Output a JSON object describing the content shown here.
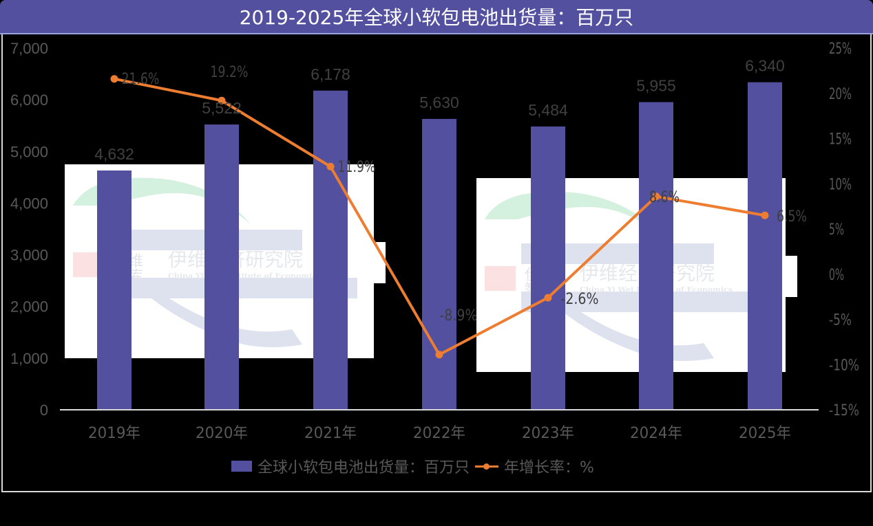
{
  "title": "2019-2025年全球小软包电池出货量：百万只",
  "legend": {
    "bar_label": "全球小软包电池出货量：百万只",
    "line_label": "年增长率：%"
  },
  "colors": {
    "bar": "#5450A0",
    "line": "#ED7D31",
    "title_bg": "#5450A0",
    "axis_text": "#595959",
    "data_label": "#404040"
  },
  "watermark": {
    "cn_short": "伊维智库",
    "cn_full": "伊维经济研究院",
    "en": "China Yi Wei Institute of Economics"
  },
  "chart_data": {
    "type": "bar+line",
    "title": "2019-2025年全球小软包电池出货量：百万只",
    "categories": [
      "2019年",
      "2020年",
      "2021年",
      "2022年",
      "2023年",
      "2024年",
      "2025年"
    ],
    "series": [
      {
        "name": "全球小软包电池出货量：百万只",
        "type": "bar",
        "axis": "left",
        "values": [
          4632,
          5522,
          6178,
          5630,
          5484,
          5955,
          6340
        ],
        "labels": [
          "4,632",
          "5,522",
          "6,178",
          "5,630",
          "5,484",
          "5,955",
          "6,340"
        ]
      },
      {
        "name": "年增长率：%",
        "type": "line",
        "axis": "right",
        "values": [
          21.6,
          19.2,
          11.9,
          -8.9,
          -2.6,
          8.6,
          6.5
        ],
        "labels": [
          "21.6%",
          "19.2%",
          "11.9%",
          "-8.9%",
          "-2.6%",
          "8.6%",
          "6.5%"
        ]
      }
    ],
    "left_axis": {
      "ylim": [
        0,
        7000
      ],
      "ticks": [
        "0",
        "1,000",
        "2,000",
        "3,000",
        "4,000",
        "5,000",
        "6,000",
        "7,000"
      ]
    },
    "right_axis": {
      "ylim": [
        -15,
        25
      ],
      "ticks": [
        "-15%",
        "-10%",
        "-5%",
        "0%",
        "5%",
        "10%",
        "15%",
        "20%",
        "25%"
      ]
    },
    "grid": false,
    "legend_position": "bottom"
  }
}
